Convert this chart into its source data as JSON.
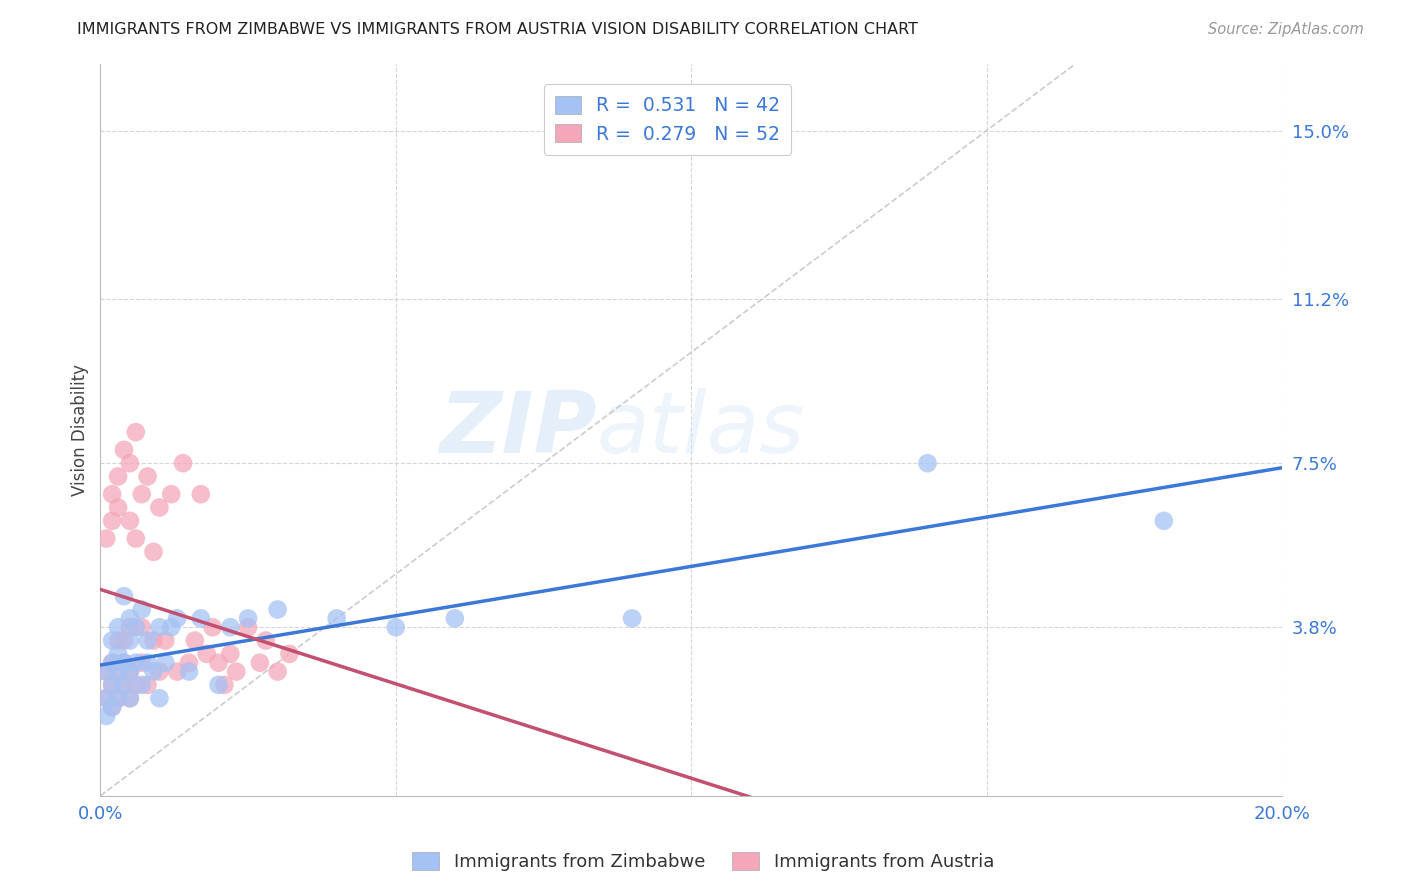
{
  "title": "IMMIGRANTS FROM ZIMBABWE VS IMMIGRANTS FROM AUSTRIA VISION DISABILITY CORRELATION CHART",
  "source": "Source: ZipAtlas.com",
  "ylabel": "Vision Disability",
  "xlim": [
    0.0,
    0.2
  ],
  "ylim": [
    0.0,
    0.165
  ],
  "ytick_positions": [
    0.038,
    0.075,
    0.112,
    0.15
  ],
  "ytick_labels": [
    "3.8%",
    "7.5%",
    "11.2%",
    "15.0%"
  ],
  "blue_color": "#a4c2f4",
  "pink_color": "#f4a7b9",
  "blue_line_color": "#3c78d8",
  "pink_line_color": "#c2506e",
  "diag_line_color": "#cccccc",
  "watermark_zip": "ZIP",
  "watermark_atlas": "atlas",
  "background_color": "#ffffff",
  "grid_color": "#cccccc",
  "zimbabwe_x": [
    0.001,
    0.001,
    0.001,
    0.002,
    0.002,
    0.002,
    0.002,
    0.003,
    0.003,
    0.003,
    0.003,
    0.004,
    0.004,
    0.004,
    0.005,
    0.005,
    0.005,
    0.005,
    0.006,
    0.006,
    0.007,
    0.007,
    0.008,
    0.008,
    0.009,
    0.01,
    0.01,
    0.011,
    0.012,
    0.013,
    0.015,
    0.017,
    0.02,
    0.022,
    0.025,
    0.03,
    0.04,
    0.05,
    0.06,
    0.09,
    0.14,
    0.18
  ],
  "zimbabwe_y": [
    0.022,
    0.028,
    0.018,
    0.025,
    0.03,
    0.02,
    0.035,
    0.022,
    0.028,
    0.032,
    0.038,
    0.025,
    0.03,
    0.045,
    0.028,
    0.022,
    0.035,
    0.04,
    0.03,
    0.038,
    0.025,
    0.042,
    0.03,
    0.035,
    0.028,
    0.038,
    0.022,
    0.03,
    0.038,
    0.04,
    0.028,
    0.04,
    0.025,
    0.038,
    0.04,
    0.042,
    0.04,
    0.038,
    0.04,
    0.04,
    0.075,
    0.062
  ],
  "austria_x": [
    0.001,
    0.001,
    0.001,
    0.002,
    0.002,
    0.002,
    0.002,
    0.002,
    0.003,
    0.003,
    0.003,
    0.003,
    0.003,
    0.004,
    0.004,
    0.004,
    0.004,
    0.005,
    0.005,
    0.005,
    0.005,
    0.005,
    0.006,
    0.006,
    0.006,
    0.007,
    0.007,
    0.007,
    0.008,
    0.008,
    0.009,
    0.009,
    0.01,
    0.01,
    0.011,
    0.012,
    0.013,
    0.014,
    0.015,
    0.016,
    0.017,
    0.018,
    0.019,
    0.02,
    0.021,
    0.022,
    0.023,
    0.025,
    0.027,
    0.028,
    0.03,
    0.032
  ],
  "austria_y": [
    0.022,
    0.028,
    0.058,
    0.02,
    0.025,
    0.062,
    0.03,
    0.068,
    0.022,
    0.028,
    0.072,
    0.035,
    0.065,
    0.025,
    0.03,
    0.078,
    0.035,
    0.022,
    0.028,
    0.062,
    0.075,
    0.038,
    0.025,
    0.058,
    0.082,
    0.03,
    0.068,
    0.038,
    0.025,
    0.072,
    0.035,
    0.055,
    0.028,
    0.065,
    0.035,
    0.068,
    0.028,
    0.075,
    0.03,
    0.035,
    0.068,
    0.032,
    0.038,
    0.03,
    0.025,
    0.032,
    0.028,
    0.038,
    0.03,
    0.035,
    0.028,
    0.032
  ]
}
